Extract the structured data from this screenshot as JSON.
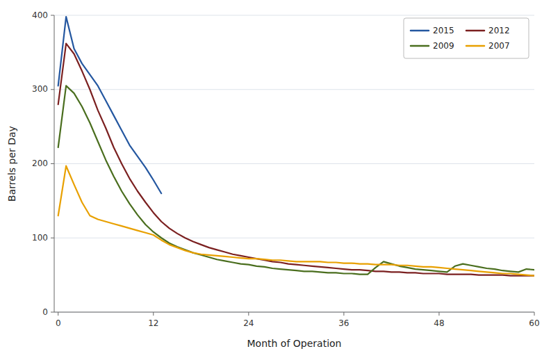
{
  "chart_data": {
    "type": "line",
    "xlabel": "Month of Operation",
    "ylabel": "Barrels per Day",
    "xlim": [
      -0.5,
      60
    ],
    "ylim": [
      0,
      400
    ],
    "xticks": [
      0,
      12,
      24,
      36,
      48,
      60
    ],
    "yticks": [
      0,
      100,
      200,
      300,
      400
    ],
    "grid": true,
    "legend": "upper right",
    "series": [
      {
        "name": "2015",
        "color": "#2457a0",
        "x": [
          0,
          1,
          2,
          3,
          4,
          5,
          6,
          7,
          8,
          9,
          10,
          11,
          12,
          13
        ],
        "values": [
          305,
          398,
          355,
          335,
          320,
          305,
          285,
          265,
          245,
          225,
          210,
          195,
          178,
          160
        ]
      },
      {
        "name": "2012",
        "color": "#7b2020",
        "x": [
          0,
          1,
          2,
          3,
          4,
          5,
          6,
          7,
          8,
          9,
          10,
          11,
          12,
          13,
          14,
          15,
          16,
          17,
          18,
          19,
          20,
          21,
          22,
          23,
          24,
          25,
          26,
          27,
          28,
          29,
          30,
          31,
          32,
          33,
          34,
          35,
          36,
          37,
          38,
          39,
          40,
          41,
          42,
          43,
          44,
          45,
          46,
          47,
          48,
          49,
          50,
          51,
          52,
          53,
          54,
          55,
          56,
          57,
          58,
          59,
          60
        ],
        "values": [
          280,
          362,
          348,
          325,
          300,
          272,
          248,
          222,
          200,
          180,
          163,
          148,
          134,
          122,
          113,
          106,
          100,
          95,
          91,
          87,
          84,
          81,
          78,
          76,
          74,
          72,
          70,
          68,
          67,
          65,
          64,
          63,
          62,
          61,
          60,
          59,
          58,
          57,
          57,
          56,
          55,
          55,
          54,
          54,
          53,
          53,
          52,
          52,
          52,
          51,
          51,
          51,
          51,
          50,
          50,
          50,
          50,
          49,
          49,
          49,
          49
        ]
      },
      {
        "name": "2009",
        "color": "#4a6e1e",
        "x": [
          0,
          1,
          2,
          3,
          4,
          5,
          6,
          7,
          8,
          9,
          10,
          11,
          12,
          13,
          14,
          15,
          16,
          17,
          18,
          19,
          20,
          21,
          22,
          23,
          24,
          25,
          26,
          27,
          28,
          29,
          30,
          31,
          32,
          33,
          34,
          35,
          36,
          37,
          38,
          39,
          40,
          41,
          42,
          43,
          44,
          45,
          46,
          47,
          48,
          49,
          50,
          51,
          52,
          53,
          54,
          55,
          56,
          57,
          58,
          59,
          60
        ],
        "values": [
          222,
          305,
          295,
          277,
          255,
          230,
          205,
          183,
          163,
          146,
          131,
          118,
          108,
          100,
          93,
          88,
          84,
          80,
          77,
          74,
          71,
          69,
          67,
          65,
          64,
          62,
          61,
          59,
          58,
          57,
          56,
          55,
          55,
          54,
          53,
          53,
          52,
          52,
          51,
          51,
          60,
          68,
          65,
          62,
          60,
          58,
          57,
          56,
          55,
          54,
          62,
          65,
          63,
          61,
          59,
          58,
          56,
          55,
          54,
          58,
          57
        ]
      },
      {
        "name": "2007",
        "color": "#e8a000",
        "x": [
          0,
          1,
          2,
          3,
          4,
          5,
          6,
          7,
          8,
          9,
          10,
          11,
          12,
          13,
          14,
          15,
          16,
          17,
          18,
          19,
          20,
          21,
          22,
          23,
          24,
          25,
          26,
          27,
          28,
          29,
          30,
          31,
          32,
          33,
          34,
          35,
          36,
          37,
          38,
          39,
          40,
          41,
          42,
          43,
          44,
          45,
          46,
          47,
          48,
          49,
          50,
          51,
          52,
          53,
          54,
          55,
          56,
          57,
          58,
          59,
          60
        ],
        "values": [
          130,
          197,
          172,
          148,
          130,
          125,
          122,
          119,
          116,
          113,
          110,
          107,
          104,
          97,
          91,
          87,
          83,
          80,
          78,
          77,
          76,
          75,
          74,
          73,
          72,
          72,
          71,
          70,
          70,
          69,
          68,
          68,
          68,
          68,
          67,
          67,
          66,
          66,
          65,
          65,
          64,
          64,
          64,
          63,
          63,
          62,
          61,
          61,
          60,
          59,
          58,
          57,
          56,
          55,
          54,
          53,
          52,
          52,
          51,
          50,
          49
        ]
      }
    ]
  }
}
